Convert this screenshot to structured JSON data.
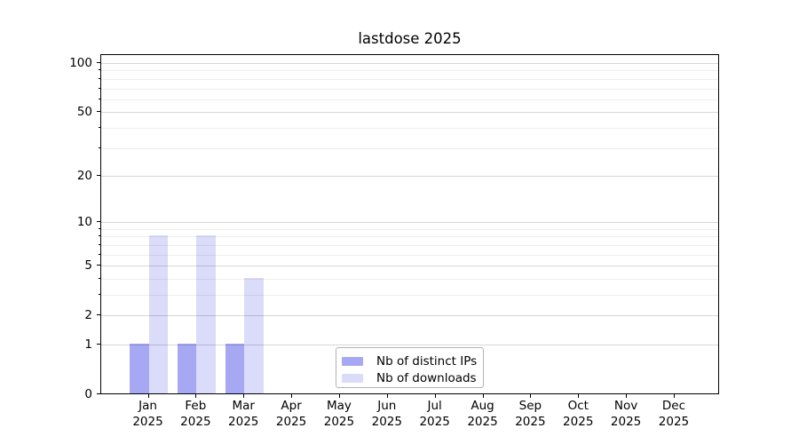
{
  "chart_data": {
    "type": "bar",
    "title": "lastdose 2025",
    "categories": [
      "Jan",
      "Feb",
      "Mar",
      "Apr",
      "May",
      "Jun",
      "Jul",
      "Aug",
      "Sep",
      "Oct",
      "Nov",
      "Dec"
    ],
    "xtick_year": "2025",
    "series": [
      {
        "name": "Nb of distinct IPs",
        "color": "#a6a8f4",
        "values": [
          1,
          1,
          1,
          0,
          0,
          0,
          0,
          0,
          0,
          0,
          0,
          0
        ]
      },
      {
        "name": "Nb of downloads",
        "color": "#dadcf9",
        "values": [
          8,
          8,
          4,
          0,
          0,
          0,
          0,
          0,
          0,
          0,
          0,
          0
        ]
      }
    ],
    "xlabel": "",
    "ylabel": "",
    "yscale": "log1p",
    "ylim": [
      0,
      113.4
    ],
    "yticks": [
      0,
      1,
      2,
      5,
      10,
      20,
      50,
      100
    ],
    "ytick_labels": [
      "0",
      "1",
      "2",
      "5",
      "10",
      "20",
      "50",
      "100"
    ],
    "minor_yticks": [
      3,
      4,
      6,
      7,
      8,
      9,
      30,
      40,
      60,
      70,
      80,
      90
    ],
    "grid": true,
    "legend_position": "lower center"
  },
  "colors": {
    "grid_major": "rgba(0,0,0,0.16)",
    "grid_minor": "rgba(0,0,0,0.065)",
    "axis": "#000000",
    "legend_border": "#b3b3b3",
    "text": "#000000",
    "background": "#ffffff"
  }
}
